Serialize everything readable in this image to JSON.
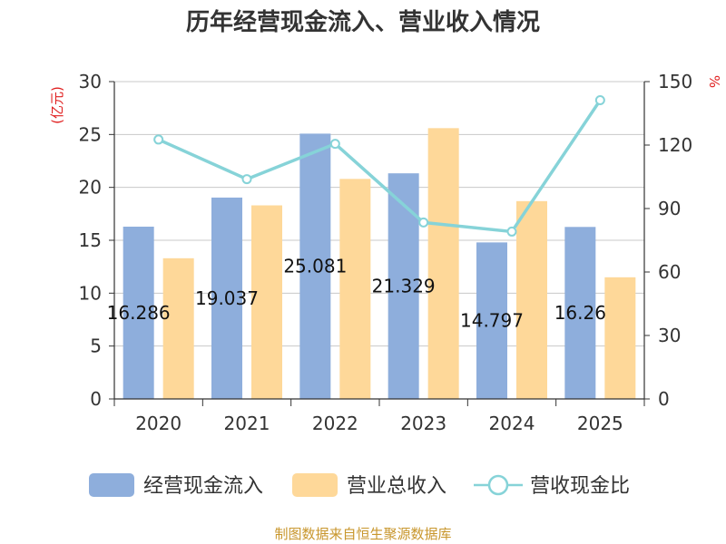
{
  "chart_data": {
    "type": "bar",
    "title": "历年经营现金流入、营业收入情况",
    "categories": [
      "2020",
      "2021",
      "2022",
      "2023",
      "2024",
      "2025"
    ],
    "series": [
      {
        "name": "经营现金流入",
        "type": "bar",
        "axis": "left",
        "color": "#8eaedc",
        "values": [
          16.286,
          19.037,
          25.081,
          21.329,
          14.797,
          16.26
        ],
        "data_labels": [
          "16.286",
          "19.037",
          "25.081",
          "21.329",
          "14.797",
          "16.26"
        ]
      },
      {
        "name": "营业总收入",
        "type": "bar",
        "axis": "left",
        "color": "#fed899",
        "values": [
          13.3,
          18.3,
          20.8,
          25.6,
          18.7,
          11.5
        ]
      },
      {
        "name": "营收现金比",
        "type": "line",
        "axis": "right",
        "color": "#86d3d8",
        "values": [
          122.6,
          103.9,
          120.6,
          83.4,
          79.1,
          141.2
        ]
      }
    ],
    "left_axis": {
      "unit": "(亿元)",
      "ylim": [
        0,
        30
      ],
      "ticks": [
        0,
        5,
        10,
        15,
        20,
        25,
        30
      ]
    },
    "right_axis": {
      "unit": "%",
      "ylim": [
        0,
        150
      ],
      "ticks": [
        0,
        30,
        60,
        90,
        120,
        150
      ]
    },
    "grid": true,
    "legend_position": "bottom"
  },
  "source_text": "制图数据来自恒生聚源数据库"
}
